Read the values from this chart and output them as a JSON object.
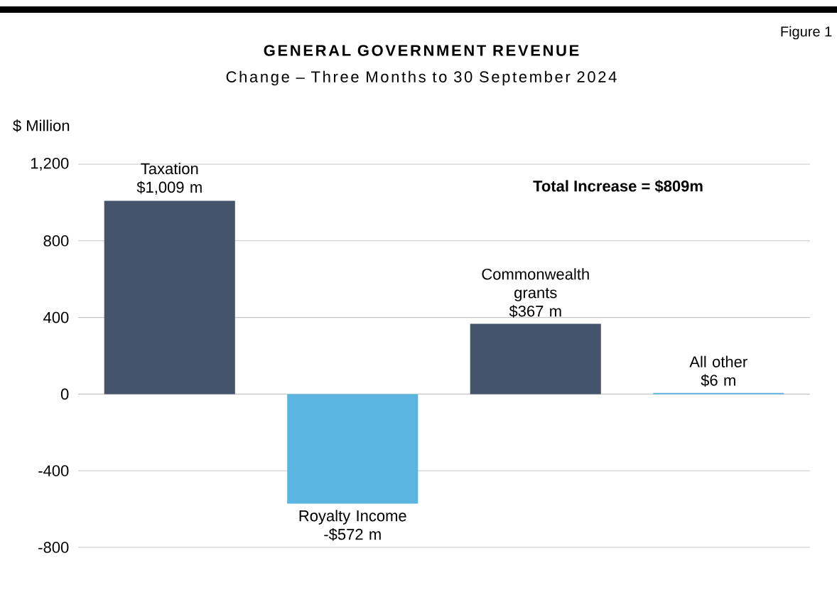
{
  "chart_data": {
    "type": "bar",
    "title": "GENERAL GOVERNMENT REVENUE",
    "subtitle": "Change – Three Months to 30 September 2024",
    "ylabel": "$ Million",
    "categories": [
      "Taxation",
      "Royalty Income",
      "Commonwealth grants",
      "All other"
    ],
    "values": [
      1009,
      -572,
      367,
      6
    ],
    "colors": [
      "#44546a",
      "#5bb5e0",
      "#44546a",
      "#5bb5e0"
    ],
    "value_labels": [
      "$1,009 m",
      "-$572 m",
      "$367 m",
      "$6 m"
    ],
    "ylim": [
      -800,
      1200
    ],
    "yticks": [
      -800,
      -400,
      0,
      400,
      800,
      {
        "value": 1200,
        "label": "1,200"
      }
    ],
    "grid": "y",
    "tick_labels": "y",
    "annotations": [
      "Figure 1",
      "**Total Increase = $809m**"
    ]
  }
}
